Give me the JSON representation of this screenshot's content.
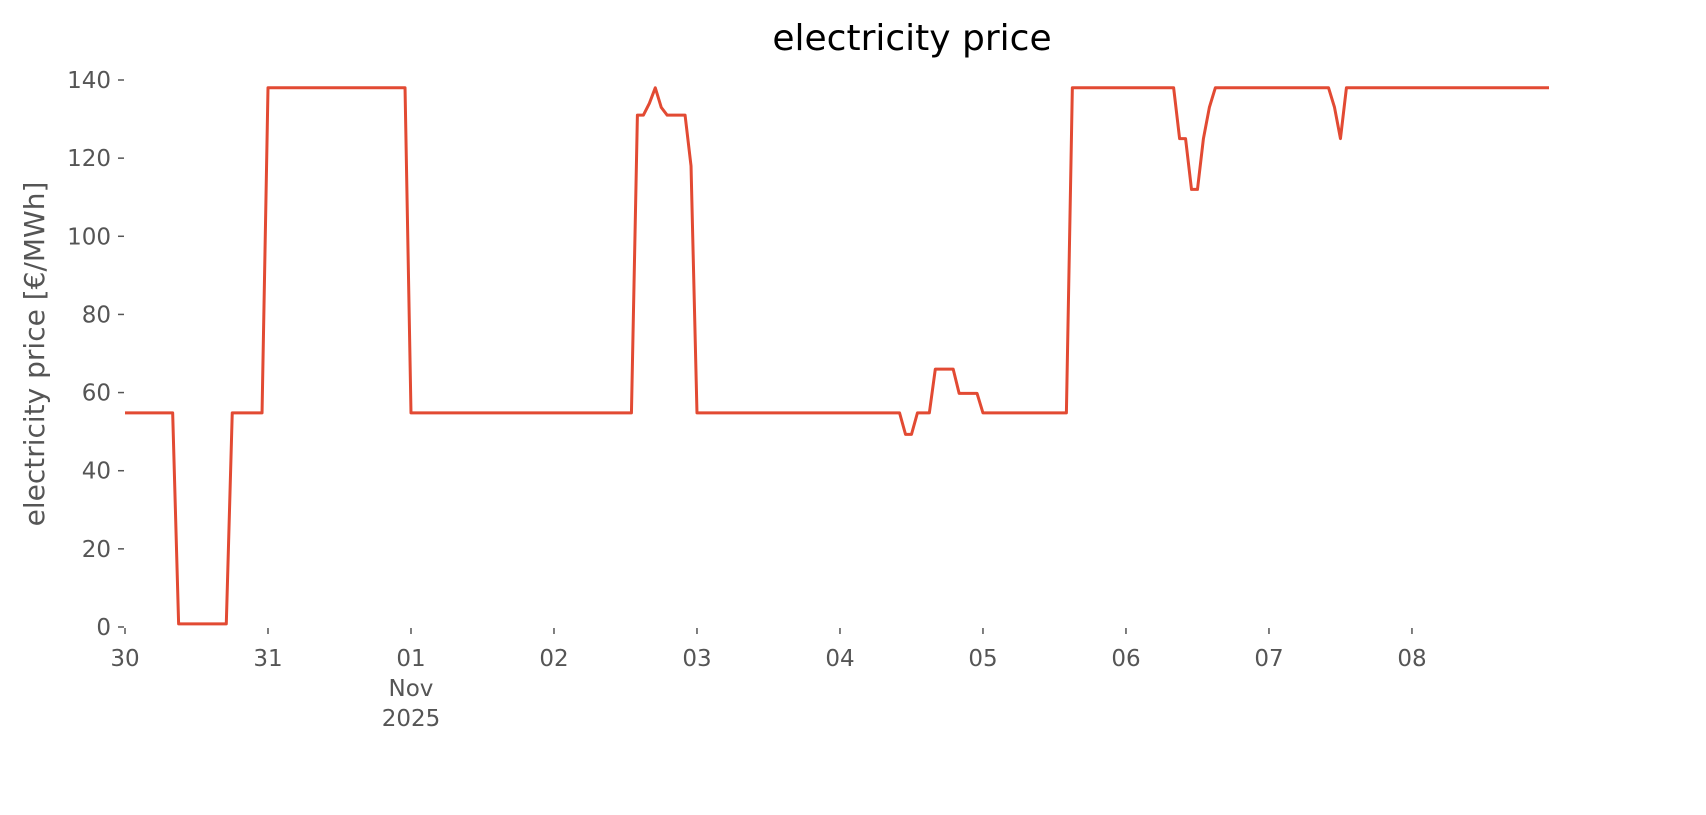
{
  "chart_data": {
    "type": "line",
    "title": "electricity price",
    "ylabel": "electricity price [€/MWh]",
    "x": [
      "2025-10-30T00:00",
      "2025-10-30T08:00",
      "2025-10-30T09:00",
      "2025-10-30T17:00",
      "2025-10-30T18:00",
      "2025-10-30T23:00",
      "2025-10-31T00:00",
      "2025-10-31T23:00",
      "2025-11-01T00:00",
      "2025-11-02T13:00",
      "2025-11-02T14:00",
      "2025-11-02T15:00",
      "2025-11-02T16:00",
      "2025-11-02T17:00",
      "2025-11-02T18:00",
      "2025-11-02T19:00",
      "2025-11-02T22:00",
      "2025-11-02T23:00",
      "2025-11-03T00:00",
      "2025-11-04T10:00",
      "2025-11-04T11:00",
      "2025-11-04T12:00",
      "2025-11-04T13:00",
      "2025-11-04T15:00",
      "2025-11-04T16:00",
      "2025-11-04T19:00",
      "2025-11-04T20:00",
      "2025-11-04T23:00",
      "2025-11-05T00:00",
      "2025-11-05T14:00",
      "2025-11-05T15:00",
      "2025-11-06T08:00",
      "2025-11-06T09:00",
      "2025-11-06T10:00",
      "2025-11-06T11:00",
      "2025-11-06T12:00",
      "2025-11-06T13:00",
      "2025-11-06T14:00",
      "2025-11-06T15:00",
      "2025-11-07T10:00",
      "2025-11-07T11:00",
      "2025-11-07T12:00",
      "2025-11-07T13:00",
      "2025-11-08T23:00"
    ],
    "series": [
      {
        "name": "electricity price",
        "color": "#e24a33",
        "values": [
          54.8,
          54.8,
          0.8,
          0.8,
          54.8,
          54.8,
          138,
          138,
          54.8,
          54.8,
          131,
          131,
          134,
          138,
          133,
          131,
          131,
          118,
          54.8,
          54.8,
          49.3,
          49.3,
          54.8,
          54.8,
          66,
          66,
          59.8,
          59.8,
          54.8,
          54.8,
          138,
          138,
          125,
          125,
          112,
          112,
          125,
          133,
          138,
          138,
          133,
          125,
          138,
          138
        ]
      }
    ],
    "xlim": [
      "2025-10-30T00:00",
      "2025-11-08T23:00"
    ],
    "xticks": [
      {
        "value": "2025-10-30",
        "label": "30"
      },
      {
        "value": "2025-10-31",
        "label": "31"
      },
      {
        "value": "2025-11-01",
        "label": "01\nNov\n2025"
      },
      {
        "value": "2025-11-02",
        "label": "02"
      },
      {
        "value": "2025-11-03",
        "label": "03"
      },
      {
        "value": "2025-11-04",
        "label": "04"
      },
      {
        "value": "2025-11-05",
        "label": "05"
      },
      {
        "value": "2025-11-06",
        "label": "06"
      },
      {
        "value": "2025-11-07",
        "label": "07"
      },
      {
        "value": "2025-11-08",
        "label": "08"
      }
    ],
    "ylim": [
      0,
      140
    ],
    "yticks": [
      0,
      20,
      40,
      60,
      80,
      100,
      120,
      140
    ],
    "grid": false
  }
}
